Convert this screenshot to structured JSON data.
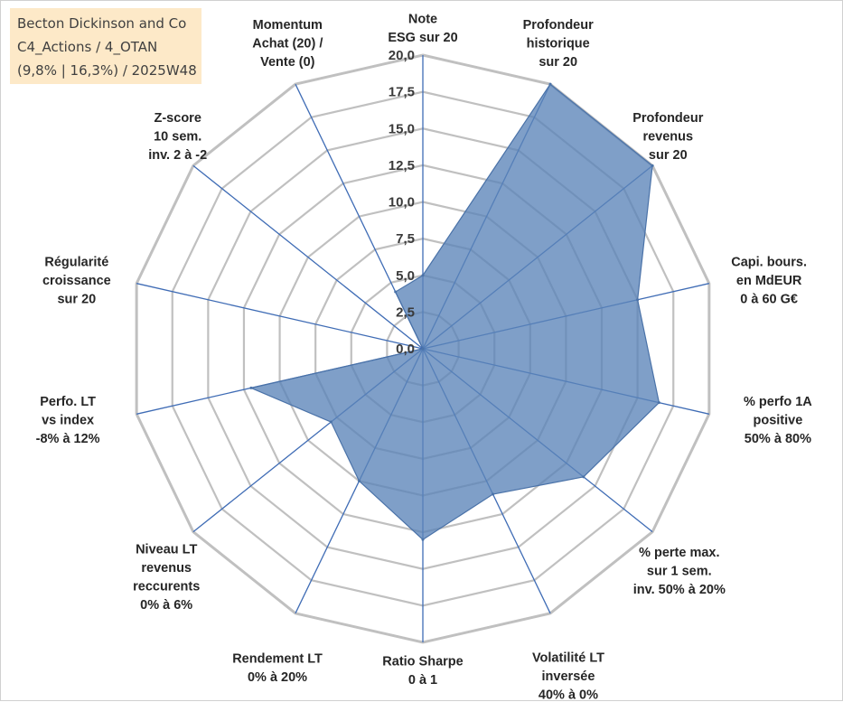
{
  "title_box": {
    "line1": "Becton Dickinson and Co",
    "line2": "C4_Actions / 4_OTAN",
    "line3": "(9,8% | 16,3%) / 2025W48"
  },
  "colors": {
    "fill": "#5b84b8",
    "stroke": "#4a72a8",
    "spoke": "#3f6cb5",
    "grid": "#c0c0c0",
    "title_bg": "#fde9c8"
  },
  "chart_data": {
    "type": "radar",
    "rmin": 0,
    "rmax": 20,
    "tick_step": 2.5,
    "tick_labels": [
      "0,0",
      "2,5",
      "5,0",
      "7,5",
      "10,0",
      "12,5",
      "15,0",
      "17,5",
      "20,0"
    ],
    "axes": [
      [
        "Note",
        "ESG sur 20"
      ],
      [
        "Profondeur",
        "historique",
        "sur 20"
      ],
      [
        "Profondeur",
        "revenus",
        "sur 20"
      ],
      [
        "Capi. bours.",
        "en MdEUR",
        "0 à 60 G€"
      ],
      [
        "% perfo 1A",
        "positive",
        "50% à 80%"
      ],
      [
        "% perte max.",
        "sur 1 sem.",
        "inv. 50% à 20%"
      ],
      [
        "Volatilité LT",
        "inversée",
        "40% à 0%"
      ],
      [
        "Ratio Sharpe",
        "0 à 1"
      ],
      [
        "Rendement LT",
        "0% à 20%"
      ],
      [
        "Niveau LT",
        "revenus",
        "reccurents",
        "0% à 6%"
      ],
      [
        "Perfo. LT",
        "vs index",
        "-8% à 12%"
      ],
      [
        "Régularité",
        "croissance",
        "sur 20"
      ],
      [
        "Z-score",
        "10 sem.",
        "inv. 2 à -2"
      ],
      [
        "Momentum",
        "Achat (20) /",
        "Vente (0)"
      ]
    ],
    "series": [
      {
        "values": [
          5.0,
          20.0,
          20.0,
          15.0,
          16.5,
          14.0,
          11.0,
          13.0,
          10.0,
          8.0,
          12.0,
          0.0,
          0.0,
          4.3
        ]
      }
    ],
    "grid": true,
    "legend": "none"
  }
}
